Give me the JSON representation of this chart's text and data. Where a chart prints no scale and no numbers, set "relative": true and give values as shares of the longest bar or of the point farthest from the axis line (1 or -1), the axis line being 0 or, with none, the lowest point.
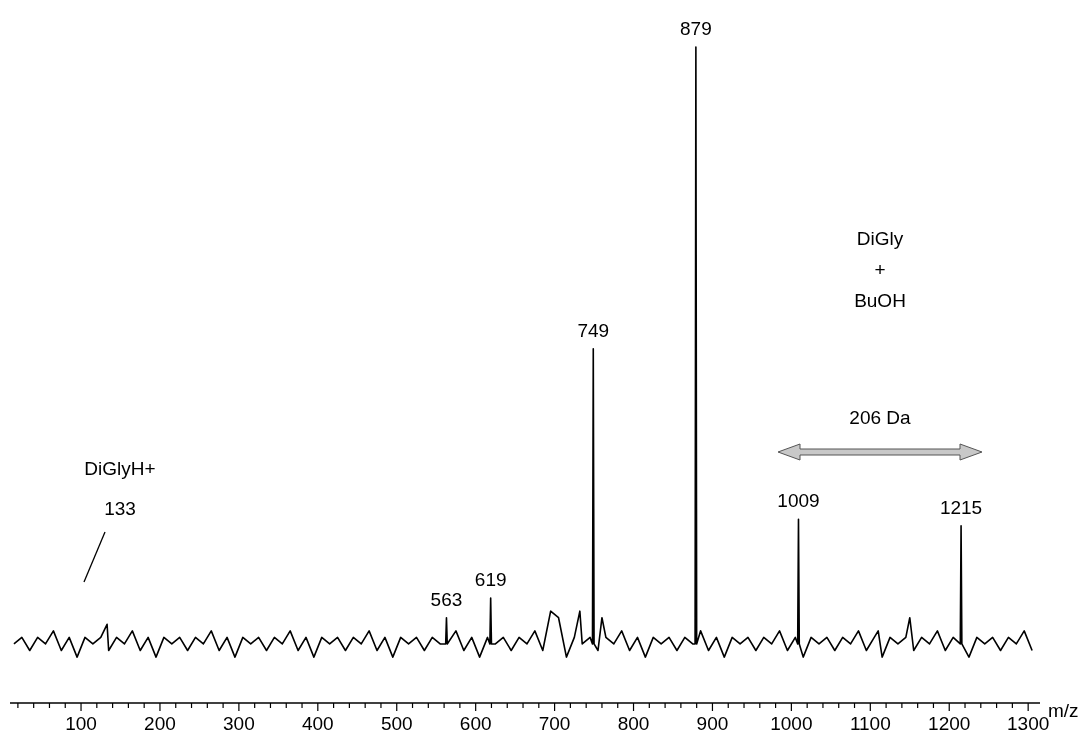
{
  "chart_data": {
    "type": "line",
    "relative": true,
    "xlabel": "m/z",
    "xlim": [
      10,
      1315
    ],
    "xticks": [
      {
        "value": 20,
        "label": null
      },
      {
        "value": 40,
        "label": null
      },
      {
        "value": 60,
        "label": null
      },
      {
        "value": 80,
        "label": null
      },
      100,
      {
        "value": 120,
        "label": null
      },
      {
        "value": 140,
        "label": null
      },
      {
        "value": 160,
        "label": null
      },
      {
        "value": 180,
        "label": null
      },
      200,
      {
        "value": 220,
        "label": null
      },
      {
        "value": 240,
        "label": null
      },
      {
        "value": 260,
        "label": null
      },
      {
        "value": 280,
        "label": null
      },
      300,
      {
        "value": 320,
        "label": null
      },
      {
        "value": 340,
        "label": null
      },
      {
        "value": 360,
        "label": null
      },
      {
        "value": 380,
        "label": null
      },
      400,
      {
        "value": 420,
        "label": null
      },
      {
        "value": 440,
        "label": null
      },
      {
        "value": 460,
        "label": null
      },
      {
        "value": 480,
        "label": null
      },
      500,
      {
        "value": 520,
        "label": null
      },
      {
        "value": 540,
        "label": null
      },
      {
        "value": 560,
        "label": null
      },
      {
        "value": 580,
        "label": null
      },
      600,
      {
        "value": 620,
        "label": null
      },
      {
        "value": 640,
        "label": null
      },
      {
        "value": 660,
        "label": null
      },
      {
        "value": 680,
        "label": null
      },
      700,
      {
        "value": 720,
        "label": null
      },
      {
        "value": 740,
        "label": null
      },
      {
        "value": 760,
        "label": null
      },
      {
        "value": 780,
        "label": null
      },
      800,
      {
        "value": 820,
        "label": null
      },
      {
        "value": 840,
        "label": null
      },
      {
        "value": 860,
        "label": null
      },
      {
        "value": 880,
        "label": null
      },
      900,
      {
        "value": 920,
        "label": null
      },
      {
        "value": 940,
        "label": null
      },
      {
        "value": 960,
        "label": null
      },
      {
        "value": 980,
        "label": null
      },
      1000,
      {
        "value": 1020,
        "label": null
      },
      {
        "value": 1040,
        "label": null
      },
      {
        "value": 1060,
        "label": null
      },
      {
        "value": 1080,
        "label": null
      },
      1100,
      {
        "value": 1120,
        "label": null
      },
      {
        "value": 1140,
        "label": null
      },
      {
        "value": 1160,
        "label": null
      },
      {
        "value": 1180,
        "label": null
      },
      1200,
      {
        "value": 1220,
        "label": null
      },
      {
        "value": 1240,
        "label": null
      },
      {
        "value": 1260,
        "label": null
      },
      {
        "value": 1280,
        "label": null
      },
      1300
    ],
    "tick_labels": "x",
    "line_style": "solid",
    "series": [
      {
        "color": "#000000",
        "x": [
          15,
          25,
          35,
          45,
          55,
          65,
          75,
          85,
          95,
          105,
          115,
          125,
          133,
          135,
          145,
          155,
          165,
          175,
          185,
          195,
          205,
          215,
          225,
          235,
          245,
          255,
          265,
          275,
          285,
          295,
          305,
          315,
          325,
          335,
          345,
          355,
          365,
          375,
          385,
          395,
          405,
          415,
          425,
          435,
          445,
          455,
          465,
          475,
          485,
          495,
          505,
          515,
          525,
          535,
          545,
          555,
          562,
          563,
          564,
          575,
          585,
          595,
          605,
          615,
          618,
          619,
          620,
          625,
          635,
          645,
          655,
          665,
          675,
          685,
          695,
          705,
          715,
          725,
          732,
          735,
          745,
          748,
          749,
          750,
          755,
          760,
          765,
          775,
          785,
          795,
          805,
          815,
          825,
          835,
          845,
          855,
          865,
          875,
          878,
          879,
          880,
          885,
          895,
          905,
          915,
          925,
          935,
          945,
          955,
          965,
          975,
          985,
          995,
          1005,
          1008,
          1009,
          1010,
          1015,
          1025,
          1035,
          1045,
          1055,
          1065,
          1075,
          1085,
          1095,
          1105,
          1110,
          1115,
          1125,
          1135,
          1145,
          1150,
          1155,
          1165,
          1175,
          1185,
          1195,
          1205,
          1214,
          1215,
          1216,
          1225,
          1235,
          1245,
          1255,
          1265,
          1275,
          1285,
          1295,
          1305
        ],
        "values": [
          0.09,
          0.1,
          0.08,
          0.1,
          0.09,
          0.11,
          0.08,
          0.1,
          0.07,
          0.1,
          0.09,
          0.1,
          0.12,
          0.08,
          0.1,
          0.09,
          0.11,
          0.08,
          0.1,
          0.07,
          0.1,
          0.09,
          0.1,
          0.08,
          0.1,
          0.09,
          0.11,
          0.08,
          0.1,
          0.07,
          0.1,
          0.09,
          0.1,
          0.08,
          0.1,
          0.09,
          0.11,
          0.08,
          0.1,
          0.07,
          0.1,
          0.09,
          0.1,
          0.08,
          0.1,
          0.09,
          0.11,
          0.08,
          0.1,
          0.07,
          0.1,
          0.09,
          0.1,
          0.08,
          0.1,
          0.09,
          0.09,
          0.13,
          0.09,
          0.11,
          0.08,
          0.1,
          0.07,
          0.1,
          0.09,
          0.16,
          0.09,
          0.09,
          0.1,
          0.08,
          0.1,
          0.09,
          0.11,
          0.08,
          0.14,
          0.13,
          0.07,
          0.1,
          0.14,
          0.09,
          0.1,
          0.09,
          0.54,
          0.09,
          0.08,
          0.13,
          0.1,
          0.09,
          0.11,
          0.08,
          0.1,
          0.07,
          0.1,
          0.09,
          0.1,
          0.08,
          0.1,
          0.09,
          0.09,
          1,
          0.09,
          0.11,
          0.08,
          0.1,
          0.07,
          0.1,
          0.09,
          0.1,
          0.08,
          0.1,
          0.09,
          0.11,
          0.08,
          0.1,
          0.09,
          0.28,
          0.09,
          0.07,
          0.1,
          0.09,
          0.1,
          0.08,
          0.1,
          0.09,
          0.11,
          0.08,
          0.1,
          0.11,
          0.07,
          0.1,
          0.09,
          0.1,
          0.13,
          0.08,
          0.1,
          0.09,
          0.11,
          0.08,
          0.1,
          0.09,
          0.27,
          0.09,
          0.07,
          0.1,
          0.09,
          0.1,
          0.08,
          0.1,
          0.09,
          0.11,
          0.08
        ]
      }
    ],
    "annotations": [
      {
        "text": "879",
        "x": 879,
        "y": 1
      },
      {
        "text": "749",
        "x": 749,
        "y": 0.54
      },
      {
        "text": "1009",
        "x": 1009,
        "y": 0.28
      },
      {
        "text": "1215",
        "x": 1215,
        "y": 0.27
      },
      {
        "text": "619",
        "x": 619,
        "y": 0.16
      },
      {
        "text": "563",
        "x": 563,
        "y": 0.13
      },
      "DiGlyH+",
      "133",
      "206 Da",
      "DiGly\n+\nBuOH"
    ]
  }
}
